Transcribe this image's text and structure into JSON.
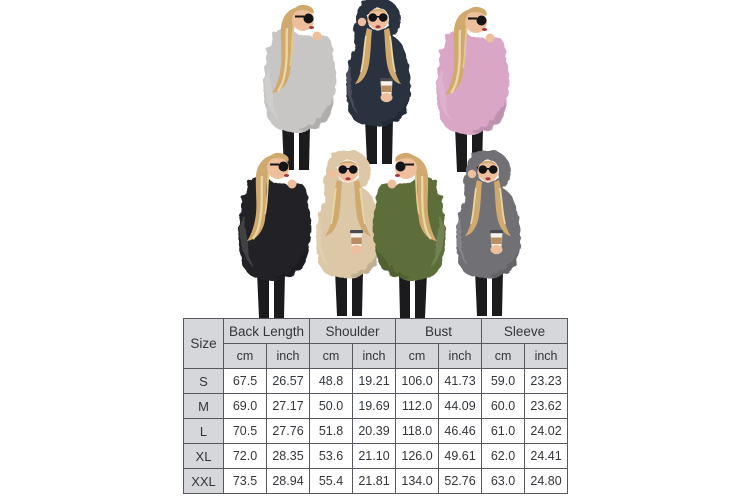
{
  "image_type": "product listing collage: fleece hoodie models above size chart",
  "background": "#ffffff",
  "palette": {
    "skin": "#edbf9c",
    "hair": "#cfa96e",
    "hair_highlight": "#ecd9a8",
    "legs": "#1b1b1e",
    "lips": "#a8353e",
    "sunglasses": "#141417",
    "cup_body": "#f6f3ec",
    "cup_sleeve": "#b98d60",
    "cup_lid": "#4a4a4e"
  },
  "gallery": {
    "rows": [
      {
        "models": [
          {
            "color_name": "Light Grey",
            "hex": "#c8c6c4",
            "pose": "back",
            "description": "back view, looking over shoulder, sunglasses"
          },
          {
            "color_name": "Navy Blue",
            "hex": "#2a3041",
            "pose": "front",
            "description": "hood up, hand at sunglasses, holding coffee cup"
          },
          {
            "color_name": "Pink",
            "hex": "#d9a6c6",
            "pose": "back",
            "description": "back view, looking over shoulder, sunglasses"
          }
        ]
      },
      {
        "models": [
          {
            "color_name": "Black",
            "hex": "#242427",
            "pose": "back",
            "description": "back view, looking over shoulder, sunglasses"
          },
          {
            "color_name": "Khaki",
            "hex": "#dcc8a7",
            "pose": "front",
            "description": "hood up, hand at sunglasses, holding coffee cup"
          },
          {
            "color_name": "Army Green",
            "hex": "#5d6e3a",
            "pose": "back",
            "description": "side view, hand raised to sunglasses"
          },
          {
            "color_name": "Grey",
            "hex": "#717175",
            "pose": "front",
            "description": "hood up, hand at sunglasses, holding coffee cup"
          }
        ]
      }
    ]
  },
  "size_chart": {
    "corner_label": "Size",
    "measures": [
      "Back Length",
      "Shoulder",
      "Bust",
      "Sleeve"
    ],
    "unit_labels": [
      "cm",
      "inch"
    ],
    "rows": [
      {
        "size": "S",
        "values": [
          "67.5",
          "26.57",
          "48.8",
          "19.21",
          "106.0",
          "41.73",
          "59.0",
          "23.23"
        ]
      },
      {
        "size": "M",
        "values": [
          "69.0",
          "27.17",
          "50.0",
          "19.69",
          "112.0",
          "44.09",
          "60.0",
          "23.62"
        ]
      },
      {
        "size": "L",
        "values": [
          "70.5",
          "27.76",
          "51.8",
          "20.39",
          "118.0",
          "46.46",
          "61.0",
          "24.02"
        ]
      },
      {
        "size": "XL",
        "values": [
          "72.0",
          "28.35",
          "53.6",
          "21.10",
          "126.0",
          "49.61",
          "62.0",
          "24.41"
        ]
      },
      {
        "size": "XXL",
        "values": [
          "73.5",
          "28.94",
          "55.4",
          "21.81",
          "134.0",
          "52.76",
          "63.0",
          "24.80"
        ]
      }
    ],
    "colors": {
      "header_bg": "#d5d7da",
      "border": "#565a60",
      "text": "#33363a",
      "cell_bg": "#ffffff"
    }
  },
  "chart_data": {
    "type": "table",
    "title": "Hoodie size chart",
    "columns": [
      "Size",
      "Back Length cm",
      "Back Length inch",
      "Shoulder cm",
      "Shoulder inch",
      "Bust cm",
      "Bust inch",
      "Sleeve cm",
      "Sleeve inch"
    ],
    "rows": [
      [
        "S",
        67.5,
        26.57,
        48.8,
        19.21,
        106.0,
        41.73,
        59.0,
        23.23
      ],
      [
        "M",
        69.0,
        27.17,
        50.0,
        19.69,
        112.0,
        44.09,
        60.0,
        23.62
      ],
      [
        "L",
        70.5,
        27.76,
        51.8,
        20.39,
        118.0,
        46.46,
        61.0,
        24.02
      ],
      [
        "XL",
        72.0,
        28.35,
        53.6,
        21.1,
        126.0,
        49.61,
        62.0,
        24.41
      ],
      [
        "XXL",
        73.5,
        28.94,
        55.4,
        21.81,
        134.0,
        52.76,
        63.0,
        24.8
      ]
    ]
  }
}
